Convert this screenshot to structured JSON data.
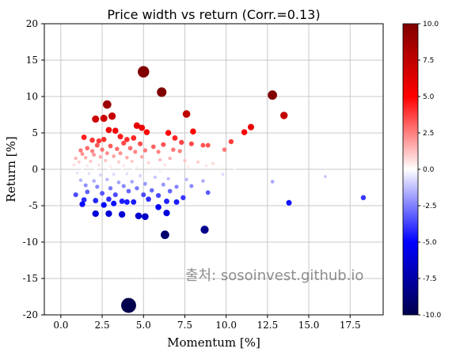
{
  "chart_data": {
    "type": "scatter",
    "title": "Price width vs return (Corr.=0.13)",
    "xlabel": "Momentum [%]",
    "ylabel": "Return [%]",
    "xlim": [
      -1,
      19.5
    ],
    "ylim": [
      -20,
      20
    ],
    "xticks": [
      0.0,
      2.5,
      5.0,
      7.5,
      10.0,
      12.5,
      15.0,
      17.5
    ],
    "xtick_labels": [
      "0.0",
      "2.5",
      "5.0",
      "7.5",
      "10.0",
      "12.5",
      "15.0",
      "17.5"
    ],
    "yticks": [
      -20,
      -15,
      -10,
      -5,
      0,
      5,
      10,
      15,
      20
    ],
    "ytick_labels": [
      "-20",
      "-15",
      "-10",
      "-5",
      "0",
      "5",
      "10",
      "15",
      "20"
    ],
    "grid": true,
    "colormap": "seismic",
    "colorbar": {
      "range": [
        -10,
        10
      ],
      "ticks": [
        -10,
        -7.5,
        -5,
        -2.5,
        0,
        2.5,
        5,
        7.5,
        10
      ],
      "tick_labels": [
        "-10.0",
        "-7.5",
        "-5.0",
        "-2.5",
        "0.0",
        "2.5",
        "5.0",
        "7.5",
        "10.0"
      ],
      "color_low": "#00004d",
      "color_mid": "#ffffff",
      "color_high": "#800000"
    },
    "watermark": "출처: sosoinvest.github.io",
    "points": [
      [
        5.0,
        13.4
      ],
      [
        6.1,
        10.6
      ],
      [
        12.8,
        10.2
      ],
      [
        2.8,
        8.9
      ],
      [
        13.5,
        7.4
      ],
      [
        7.6,
        7.6
      ],
      [
        3.1,
        7.3
      ],
      [
        2.1,
        6.9
      ],
      [
        2.6,
        7.0
      ],
      [
        11.5,
        5.8
      ],
      [
        11.1,
        5.1
      ],
      [
        10.3,
        3.8
      ],
      [
        8.0,
        5.2
      ],
      [
        6.5,
        5.0
      ],
      [
        4.6,
        6.0
      ],
      [
        4.9,
        5.7
      ],
      [
        5.2,
        5.1
      ],
      [
        2.9,
        5.4
      ],
      [
        3.3,
        5.3
      ],
      [
        3.6,
        4.5
      ],
      [
        4.0,
        4.1
      ],
      [
        4.4,
        4.3
      ],
      [
        1.4,
        4.4
      ],
      [
        1.9,
        4.0
      ],
      [
        2.3,
        3.9
      ],
      [
        2.6,
        4.1
      ],
      [
        6.9,
        4.3
      ],
      [
        7.3,
        3.7
      ],
      [
        8.6,
        3.3
      ],
      [
        8.9,
        3.3
      ],
      [
        9.9,
        2.7
      ],
      [
        7.9,
        3.5
      ],
      [
        6.2,
        3.4
      ],
      [
        5.6,
        3.1
      ],
      [
        4.8,
        3.5
      ],
      [
        3.8,
        3.6
      ],
      [
        3.0,
        3.2
      ],
      [
        2.2,
        3.3
      ],
      [
        1.6,
        2.9
      ],
      [
        1.2,
        2.6
      ],
      [
        1.9,
        2.5
      ],
      [
        2.5,
        2.7
      ],
      [
        3.4,
        2.8
      ],
      [
        4.2,
        2.9
      ],
      [
        5.1,
        2.6
      ],
      [
        6.8,
        2.7
      ],
      [
        7.2,
        2.5
      ],
      [
        5.9,
        2.4
      ],
      [
        4.5,
        2.4
      ],
      [
        3.6,
        2.2
      ],
      [
        2.8,
        2.2
      ],
      [
        2.0,
        2.0
      ],
      [
        1.3,
        2.1
      ],
      [
        0.9,
        1.5
      ],
      [
        1.5,
        1.6
      ],
      [
        2.4,
        1.7
      ],
      [
        3.2,
        1.8
      ],
      [
        4.0,
        1.6
      ],
      [
        4.9,
        1.7
      ],
      [
        6.0,
        1.3
      ],
      [
        6.6,
        1.5
      ],
      [
        7.5,
        1.2
      ],
      [
        8.3,
        1.0
      ],
      [
        9.2,
        0.8
      ],
      [
        1.1,
        1.0
      ],
      [
        1.8,
        1.1
      ],
      [
        2.7,
        1.2
      ],
      [
        3.5,
        1.0
      ],
      [
        4.3,
        1.1
      ],
      [
        5.3,
        0.9
      ],
      [
        6.3,
        0.6
      ],
      [
        7.7,
        0.4
      ],
      [
        8.8,
        0.5
      ],
      [
        0.8,
        0.6
      ],
      [
        1.6,
        0.5
      ],
      [
        2.3,
        0.6
      ],
      [
        3.0,
        0.4
      ],
      [
        3.8,
        0.5
      ],
      [
        4.6,
        0.3
      ],
      [
        5.5,
        0.2
      ],
      [
        9.7,
        0.2
      ],
      [
        10.5,
        0.1
      ],
      [
        1.3,
        0.1
      ],
      [
        2.1,
        0.0
      ],
      [
        2.9,
        0.1
      ],
      [
        3.7,
        -0.1
      ],
      [
        4.4,
        0.0
      ],
      [
        5.2,
        -0.2
      ],
      [
        6.0,
        -0.3
      ],
      [
        7.0,
        -0.2
      ],
      [
        9.8,
        -0.7
      ],
      [
        16.0,
        -1.0
      ],
      [
        12.8,
        -1.7
      ],
      [
        1.0,
        -0.5
      ],
      [
        1.7,
        -0.6
      ],
      [
        2.4,
        -0.8
      ],
      [
        3.2,
        -0.7
      ],
      [
        4.0,
        -0.6
      ],
      [
        4.8,
        -0.9
      ],
      [
        5.7,
        -1.1
      ],
      [
        6.5,
        -1.3
      ],
      [
        7.6,
        -1.4
      ],
      [
        8.6,
        -1.6
      ],
      [
        1.2,
        -1.5
      ],
      [
        2.0,
        -1.6
      ],
      [
        2.8,
        -1.4
      ],
      [
        3.5,
        -1.8
      ],
      [
        4.3,
        -1.7
      ],
      [
        5.1,
        -2.0
      ],
      [
        6.2,
        -2.1
      ],
      [
        7.0,
        -2.4
      ],
      [
        7.9,
        -2.3
      ],
      [
        1.5,
        -2.2
      ],
      [
        2.2,
        -2.4
      ],
      [
        3.0,
        -2.6
      ],
      [
        3.8,
        -2.3
      ],
      [
        4.6,
        -2.6
      ],
      [
        5.5,
        -2.9
      ],
      [
        6.6,
        -3.0
      ],
      [
        8.9,
        -3.2
      ],
      [
        0.9,
        -3.5
      ],
      [
        1.6,
        -3.1
      ],
      [
        2.5,
        -3.3
      ],
      [
        3.3,
        -3.5
      ],
      [
        4.1,
        -3.0
      ],
      [
        5.0,
        -3.5
      ],
      [
        5.9,
        -3.6
      ],
      [
        7.4,
        -3.9
      ],
      [
        1.4,
        -4.2
      ],
      [
        2.1,
        -4.3
      ],
      [
        2.9,
        -4.1
      ],
      [
        3.7,
        -4.4
      ],
      [
        4.4,
        -4.5
      ],
      [
        5.3,
        -4.1
      ],
      [
        6.4,
        -4.4
      ],
      [
        7.0,
        -4.5
      ],
      [
        1.3,
        -4.8
      ],
      [
        2.6,
        -4.9
      ],
      [
        3.2,
        -4.7
      ],
      [
        4.0,
        -4.5
      ],
      [
        5.9,
        -5.2
      ],
      [
        13.8,
        -4.6
      ],
      [
        18.3,
        -3.9
      ],
      [
        2.1,
        -6.1
      ],
      [
        2.9,
        -6.1
      ],
      [
        3.7,
        -6.2
      ],
      [
        4.7,
        -6.4
      ],
      [
        5.1,
        -6.5
      ],
      [
        6.4,
        -6.0
      ],
      [
        8.7,
        -8.3
      ],
      [
        6.3,
        -9.0
      ],
      [
        4.1,
        -18.7
      ]
    ]
  }
}
